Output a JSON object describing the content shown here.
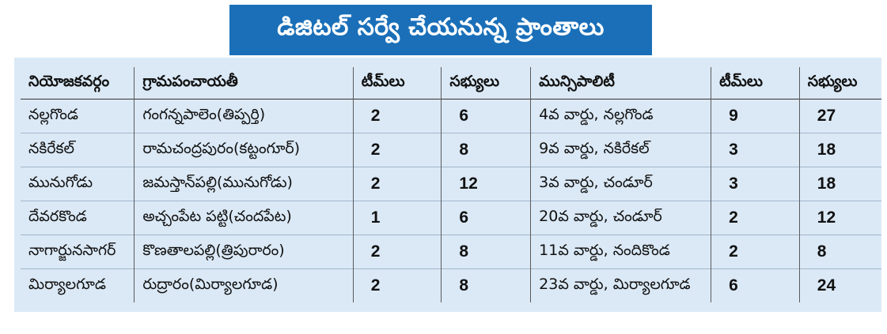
{
  "title": "డిజిటల్ సర్వే చేయనున్న ప్రాంతాలు",
  "headers": [
    "నియోజకవర్గం",
    "గ్రామపంచాయతీ",
    "టీమ్‌లు",
    "సభ్యులు",
    "మున్సిపాలిటీ",
    "టీమ్‌లు",
    "సభ్యులు"
  ],
  "rows": [
    [
      "నల్లగొండ",
      "గంగన్నపాలెం(తిప్పర్తి)",
      "2",
      "6",
      "4వ వార్డు, నల్లగొండ",
      "9",
      "27"
    ],
    [
      "నకిరేకల్",
      "రామచంద్రపురం(కట్టంగూర్)",
      "2",
      "8",
      "9వ వార్డు, నకిరేకల్",
      "3",
      "18"
    ],
    [
      "మునుగోడు",
      "జమస్తాన్‌పల్లి(మునుగోడు)",
      "2",
      "12",
      "3వ వార్డు, చండూర్",
      "3",
      "18"
    ],
    [
      "దేవరకొండ",
      "అచ్చంపేట పట్టి(చందపేట)",
      "1",
      "6",
      "20వ వార్డు, చండూర్",
      "2",
      "12"
    ],
    [
      "నాగార్జునసాగర్",
      "కొణతాలపల్లి(త్రిపురారం)",
      "2",
      "8",
      "11వ వార్డు, నందికొండ",
      "2",
      "8"
    ],
    [
      "మిర్యాలగూడ",
      "రుద్రారం(మిర్యాలగూడ)",
      "2",
      "8",
      "23వ వార్డు, మిర్యాలగూడ",
      "6",
      "24"
    ]
  ]
}
